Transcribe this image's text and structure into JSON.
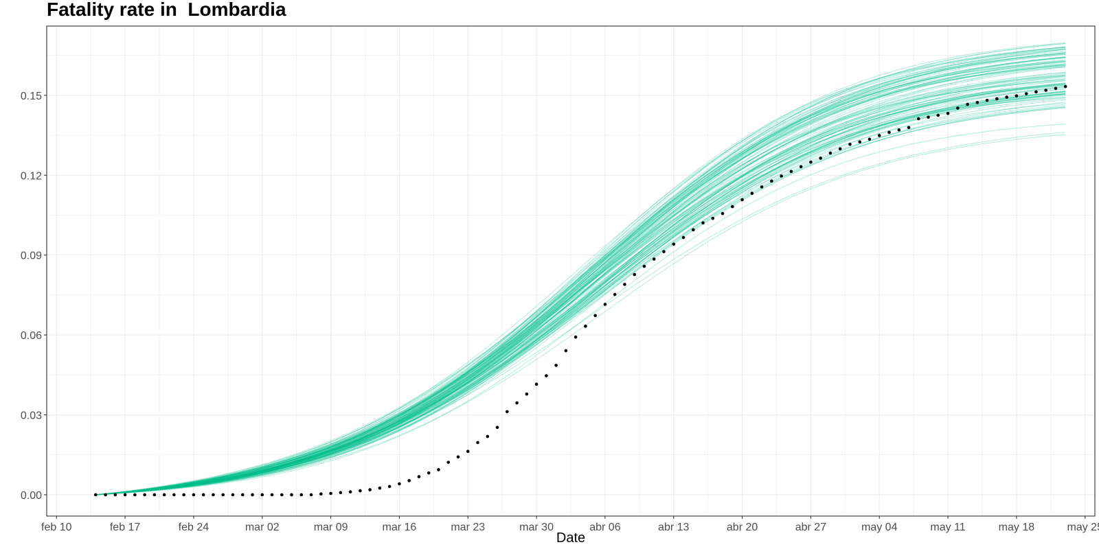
{
  "chart_data": {
    "type": "line",
    "title": "Fatality rate in  Lombardia",
    "xlabel": "Date",
    "ylabel": "",
    "x_type": "date",
    "x_tick_labels": [
      "feb 10",
      "feb 17",
      "feb 24",
      "mar 02",
      "mar 09",
      "mar 16",
      "mar 23",
      "mar 30",
      "abr 06",
      "abr 13",
      "abr 20",
      "abr 27",
      "may 04",
      "may 11",
      "may 18",
      "may 25"
    ],
    "xlim": [
      "2020-02-09",
      "2020-05-26"
    ],
    "y_ticks": [
      0.0,
      0.03,
      0.06,
      0.09,
      0.12,
      0.15
    ],
    "y_tick_labels": [
      "0.00",
      "0.03",
      "0.06",
      "0.09",
      "0.12",
      "0.15"
    ],
    "ylim": [
      -0.008,
      0.176
    ],
    "grid": true,
    "legend": "none",
    "colors": {
      "simulations": "#00BF8C",
      "observed": "#000000",
      "grid": "#ebebeb",
      "panel_border": "#333333"
    },
    "series": [
      {
        "kind": "simulated_curves",
        "count": 100,
        "x_range": [
          "2020-02-14",
          "2020-05-23"
        ],
        "model": "logistic rise from 0 beginning around 2020-03-09, spread of end values 0.138-0.168 on 2020-05-23",
        "summary_points": [
          {
            "date": "2020-03-09",
            "y": 0.0
          },
          {
            "date": "2020-03-16",
            "y": 0.004
          },
          {
            "date": "2020-03-23",
            "y": 0.019
          },
          {
            "date": "2020-03-30",
            "y": 0.041
          },
          {
            "date": "2020-04-06",
            "y": 0.063
          },
          {
            "date": "2020-04-13",
            "y": 0.083
          },
          {
            "date": "2020-04-20",
            "y": 0.1
          },
          {
            "date": "2020-04-27",
            "y": 0.114
          },
          {
            "date": "2020-05-04",
            "y": 0.126
          },
          {
            "date": "2020-05-11",
            "y": 0.136
          },
          {
            "date": "2020-05-18",
            "y": 0.145
          },
          {
            "date": "2020-05-23",
            "y": 0.152
          }
        ]
      },
      {
        "kind": "observed_points",
        "x": [
          "2020-02-14",
          "2020-02-15",
          "2020-02-16",
          "2020-02-17",
          "2020-02-18",
          "2020-02-19",
          "2020-02-20",
          "2020-02-21",
          "2020-02-22",
          "2020-02-23",
          "2020-02-24",
          "2020-02-25",
          "2020-02-26",
          "2020-02-27",
          "2020-02-28",
          "2020-02-29",
          "2020-03-01",
          "2020-03-02",
          "2020-03-03",
          "2020-03-04",
          "2020-03-05",
          "2020-03-06",
          "2020-03-07",
          "2020-03-08",
          "2020-03-09",
          "2020-03-10",
          "2020-03-11",
          "2020-03-12",
          "2020-03-13",
          "2020-03-14",
          "2020-03-15",
          "2020-03-16",
          "2020-03-17",
          "2020-03-18",
          "2020-03-19",
          "2020-03-20",
          "2020-03-21",
          "2020-03-22",
          "2020-03-23",
          "2020-03-24",
          "2020-03-25",
          "2020-03-26",
          "2020-03-27",
          "2020-03-28",
          "2020-03-29",
          "2020-03-30",
          "2020-03-31",
          "2020-04-01",
          "2020-04-02",
          "2020-04-03",
          "2020-04-04",
          "2020-04-05",
          "2020-04-06",
          "2020-04-07",
          "2020-04-08",
          "2020-04-09",
          "2020-04-10",
          "2020-04-11",
          "2020-04-12",
          "2020-04-13",
          "2020-04-14",
          "2020-04-15",
          "2020-04-16",
          "2020-04-17",
          "2020-04-18",
          "2020-04-19",
          "2020-04-20",
          "2020-04-21",
          "2020-04-22",
          "2020-04-23",
          "2020-04-24",
          "2020-04-25",
          "2020-04-26",
          "2020-04-27",
          "2020-04-28",
          "2020-04-29",
          "2020-04-30",
          "2020-05-01",
          "2020-05-02",
          "2020-05-03",
          "2020-05-04",
          "2020-05-05",
          "2020-05-06",
          "2020-05-07",
          "2020-05-08",
          "2020-05-09",
          "2020-05-10",
          "2020-05-11",
          "2020-05-12",
          "2020-05-13",
          "2020-05-14",
          "2020-05-15",
          "2020-05-16",
          "2020-05-17",
          "2020-05-18",
          "2020-05-19",
          "2020-05-20",
          "2020-05-21",
          "2020-05-22",
          "2020-05-23"
        ],
        "y": [
          0.0,
          0.0,
          0.0,
          0.0,
          0.0,
          0.0,
          0.0,
          0.0,
          0.0,
          0.0,
          0.0,
          0.0,
          0.0,
          0.0,
          0.0,
          0.0,
          0.0,
          0.0,
          0.0,
          0.0,
          0.0,
          0.0,
          0.0,
          0.0003,
          0.0005,
          0.0008,
          0.0011,
          0.0015,
          0.0019,
          0.0025,
          0.0031,
          0.0041,
          0.0053,
          0.0068,
          0.0082,
          0.0094,
          0.0122,
          0.0142,
          0.0163,
          0.0196,
          0.0219,
          0.0253,
          0.0312,
          0.0345,
          0.0378,
          0.0415,
          0.0447,
          0.0486,
          0.0541,
          0.0592,
          0.0633,
          0.0673,
          0.0715,
          0.0752,
          0.079,
          0.0827,
          0.0858,
          0.0885,
          0.0913,
          0.0941,
          0.0966,
          0.0995,
          0.1021,
          0.1038,
          0.1056,
          0.1082,
          0.1108,
          0.1132,
          0.1156,
          0.1178,
          0.1197,
          0.1214,
          0.1232,
          0.1249,
          0.1264,
          0.1283,
          0.1299,
          0.1316,
          0.1325,
          0.1335,
          0.1349,
          0.1361,
          0.137,
          0.1379,
          0.1412,
          0.1418,
          0.1425,
          0.1432,
          0.1452,
          0.1466,
          0.1473,
          0.1481,
          0.1487,
          0.1493,
          0.1498,
          0.1506,
          0.1513,
          0.1519,
          0.1526,
          0.1533
        ]
      }
    ]
  }
}
